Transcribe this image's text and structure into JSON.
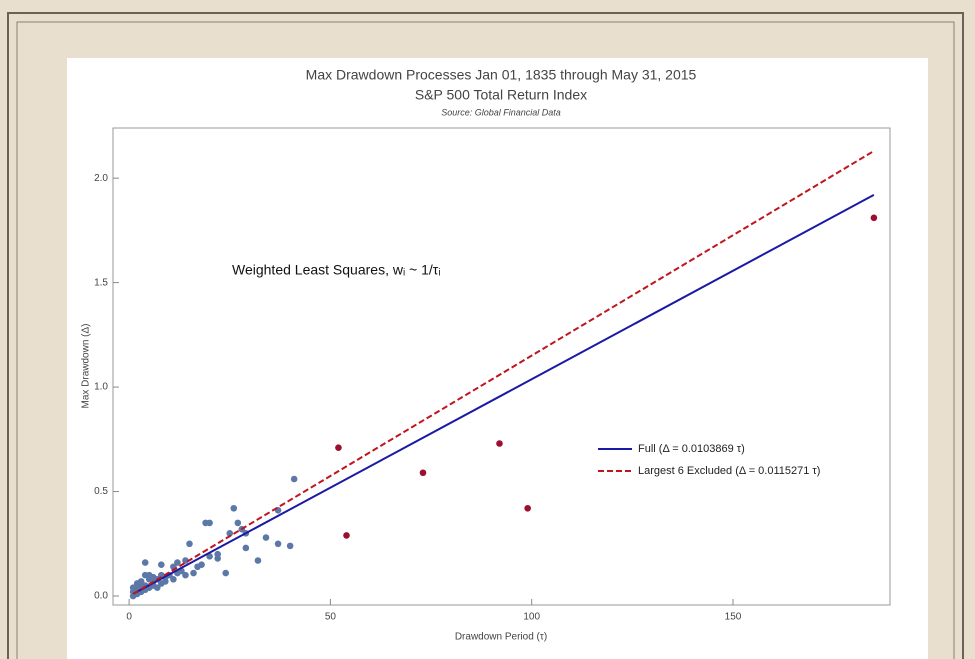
{
  "chart_data": {
    "type": "scatter",
    "title": "Max Drawdown Processes Jan 01, 1835 through May 31, 2015",
    "subtitle": "S&P 500 Total Return Index",
    "source": "Source: Global Financial Data",
    "xlabel": "Drawdown Period (τ)",
    "ylabel": "Max Drawdown (Δ)",
    "annotation": "Weighted Least Squares, wᵢ ~ 1/τᵢ",
    "xlim": [
      -4,
      189
    ],
    "ylim": [
      -0.043,
      2.24
    ],
    "xticks": [
      0,
      50,
      100,
      150
    ],
    "yticks": [
      {
        "value": 0,
        "label": "0.0"
      },
      0.5,
      {
        "value": 1,
        "label": "1.0"
      },
      1.5,
      {
        "value": 2,
        "label": "2.0"
      }
    ],
    "points": [
      {
        "color": "#5b78a8",
        "x": [
          1,
          1,
          1,
          2,
          2,
          2,
          2,
          3,
          3,
          3,
          4,
          4,
          4,
          4,
          5,
          5,
          5,
          6,
          6,
          6,
          7,
          7,
          8,
          8,
          8,
          9,
          9,
          10,
          11,
          11,
          12,
          12,
          13,
          14,
          14,
          15,
          16,
          17,
          18,
          19,
          20,
          20,
          22,
          22,
          24,
          25,
          26,
          27,
          28,
          29,
          29,
          32,
          34,
          37,
          37,
          40,
          41
        ],
        "values": [
          0.02,
          0.04,
          0.0,
          0.01,
          0.03,
          0.05,
          0.06,
          0.02,
          0.04,
          0.07,
          0.03,
          0.05,
          0.1,
          0.16,
          0.04,
          0.08,
          0.1,
          0.05,
          0.07,
          0.09,
          0.04,
          0.08,
          0.06,
          0.1,
          0.15,
          0.07,
          0.09,
          0.1,
          0.08,
          0.14,
          0.11,
          0.16,
          0.12,
          0.1,
          0.17,
          0.25,
          0.11,
          0.14,
          0.15,
          0.35,
          0.35,
          0.19,
          0.2,
          0.18,
          0.11,
          0.3,
          0.42,
          0.35,
          0.32,
          0.3,
          0.23,
          0.17,
          0.28,
          0.41,
          0.25,
          0.24,
          0.56
        ]
      },
      {
        "color": "#9b1030",
        "x": [
          52,
          54,
          73,
          92,
          99,
          185
        ],
        "values": [
          0.71,
          0.29,
          0.59,
          0.73,
          0.42,
          1.81
        ]
      }
    ],
    "series": [
      {
        "name": "Full (Δ = 0.0103869 τ)",
        "color": "#1a1aa6",
        "dash": false,
        "x": [
          1,
          185
        ],
        "values": [
          0.01,
          1.92
        ]
      },
      {
        "name": "Largest 6 Excluded (Δ = 0.0115271 τ)",
        "color": "#c0141e",
        "dash": true,
        "x": [
          1,
          185
        ],
        "values": [
          0.01,
          2.13
        ]
      }
    ]
  }
}
